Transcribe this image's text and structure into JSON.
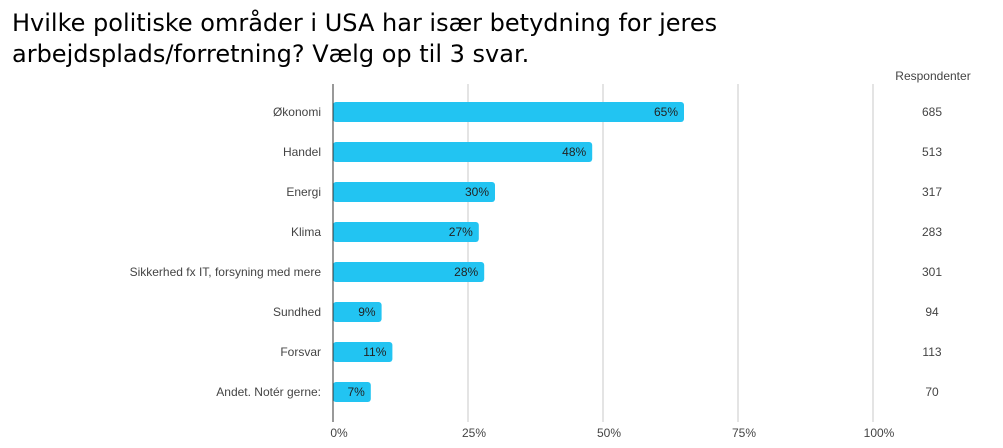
{
  "title": "Hvilke politiske områder i USA har især betydning for jeres arbejdsplads/forretning? Vælg op til 3 svar.",
  "respondents_header": "Respondenter",
  "colors": {
    "bar": "#22c4f2",
    "grid": "#c8c8c8",
    "axis": "#333333"
  },
  "chart_data": {
    "type": "bar",
    "orientation": "horizontal",
    "title": "Hvilke politiske områder i USA har især betydning for jeres arbejdsplads/forretning? Vælg op til 3 svar.",
    "categories": [
      "Økonomi",
      "Handel",
      "Energi",
      "Klima",
      "Sikkerhed fx IT, forsyning med mere",
      "Sundhed",
      "Forsvar",
      "Andet. Notér gerne:"
    ],
    "values": [
      65,
      48,
      30,
      27,
      28,
      9,
      11,
      7
    ],
    "value_labels": [
      "65%",
      "48%",
      "30%",
      "27%",
      "28%",
      "9%",
      "11%",
      "7%"
    ],
    "respondents": [
      "685",
      "513",
      "317",
      "283",
      "301",
      "94",
      "113",
      "70"
    ],
    "xlim": [
      0,
      100
    ],
    "xticks": [
      0,
      25,
      50,
      75,
      100
    ],
    "xtick_labels": [
      "0%",
      "25%",
      "50%",
      "75%",
      "100%"
    ],
    "grid": true,
    "legend": "none"
  }
}
